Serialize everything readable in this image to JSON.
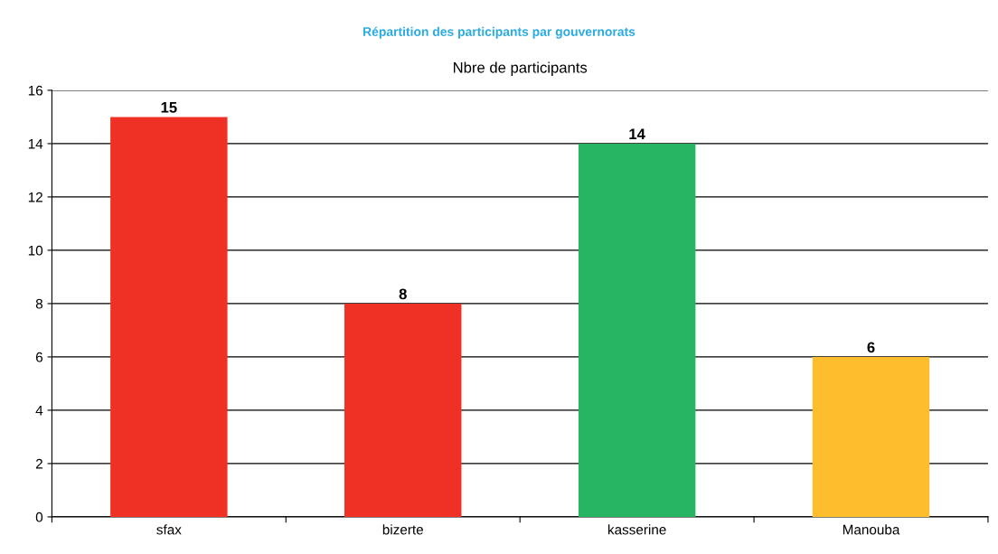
{
  "chart_data": {
    "type": "bar",
    "title": "Répartition des participants par gouvernorats",
    "subtitle": "Nbre de participants",
    "categories": [
      "sfax",
      "bizerte",
      "kasserine",
      "Manouba"
    ],
    "values": [
      15,
      8,
      14,
      6
    ],
    "colors": [
      "#ee3124",
      "#ee3124",
      "#27b463",
      "#fdbd2c"
    ],
    "ylim": [
      0,
      16
    ],
    "yticks": [
      0,
      2,
      4,
      6,
      8,
      10,
      12,
      14,
      16
    ],
    "grid": "y",
    "data_labels": true,
    "legend": false
  }
}
